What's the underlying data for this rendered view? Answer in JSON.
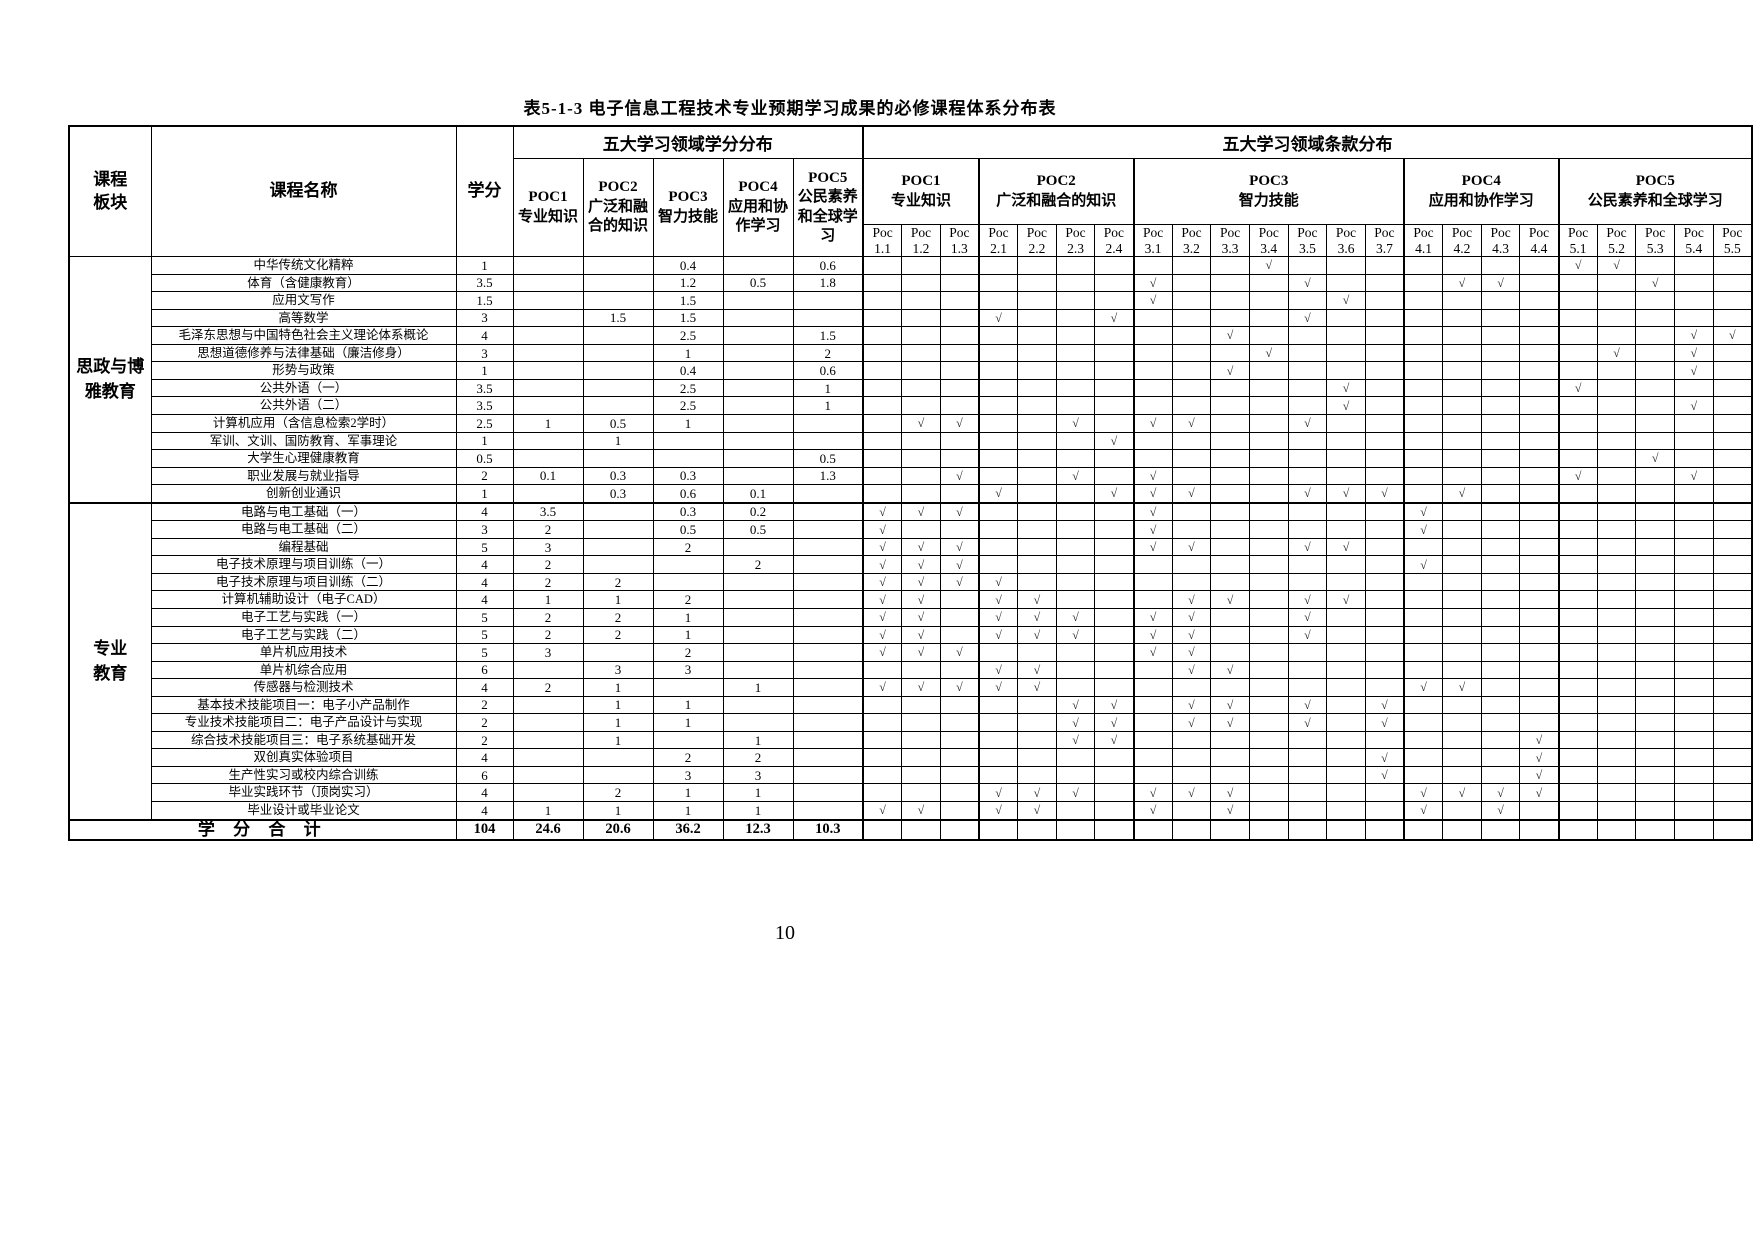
{
  "title": "表5-1-3 电子信息工程技术专业预期学习成果的必修课程体系分布表",
  "page_number": "10",
  "header": {
    "col_module": "课程板块",
    "col_course": "课程名称",
    "col_credits": "学分",
    "credits_group": "五大学习领域学分分布",
    "clauses_group": "五大学习领域条款分布",
    "sub_col_prefix": "Poc",
    "check_mark": "√",
    "credit_cols": [
      {
        "code": "POC1",
        "name": "专业知识"
      },
      {
        "code": "POC2",
        "name": "广泛和融合的知识"
      },
      {
        "code": "POC3",
        "name": "智力技能"
      },
      {
        "code": "POC4",
        "name": "应用和协作学习"
      },
      {
        "code": "POC5",
        "name": "公民素养和全球学习"
      }
    ],
    "clause_groups": [
      {
        "code": "POC1",
        "name": "专业知识",
        "cols": [
          "1.1",
          "1.2",
          "1.3"
        ]
      },
      {
        "code": "POC2",
        "name": "广泛和融合的知识",
        "cols": [
          "2.1",
          "2.2",
          "2.3",
          "2.4"
        ]
      },
      {
        "code": "POC3",
        "name": "智力技能",
        "cols": [
          "3.1",
          "3.2",
          "3.3",
          "3.4",
          "3.5",
          "3.6",
          "3.7"
        ]
      },
      {
        "code": "POC4",
        "name": "应用和协作学习",
        "cols": [
          "4.1",
          "4.2",
          "4.3",
          "4.4"
        ]
      },
      {
        "code": "POC5",
        "name": "公民素养和全球学习",
        "cols": [
          "5.1",
          "5.2",
          "5.3",
          "5.4",
          "5.5"
        ]
      }
    ]
  },
  "groups": [
    {
      "module": "思政与博雅教育",
      "rows": [
        {
          "name": "中华传统文化精粹",
          "credits": "1",
          "poc": [
            "",
            "",
            "0.4",
            "",
            "0.6"
          ],
          "checks": [
            "3.4",
            "5.1",
            "5.2"
          ]
        },
        {
          "name": "体育（含健康教育）",
          "credits": "3.5",
          "poc": [
            "",
            "",
            "1.2",
            "0.5",
            "1.8"
          ],
          "checks": [
            "3.1",
            "3.5",
            "4.2",
            "4.3",
            "5.3"
          ]
        },
        {
          "name": "应用文写作",
          "credits": "1.5",
          "poc": [
            "",
            "",
            "1.5",
            "",
            ""
          ],
          "checks": [
            "3.1",
            "3.6"
          ]
        },
        {
          "name": "高等数学",
          "credits": "3",
          "poc": [
            "",
            "1.5",
            "1.5",
            "",
            ""
          ],
          "checks": [
            "2.1",
            "2.4",
            "3.5"
          ]
        },
        {
          "name": "毛泽东思想与中国特色社会主义理论体系概论",
          "credits": "4",
          "poc": [
            "",
            "",
            "2.5",
            "",
            "1.5"
          ],
          "checks": [
            "3.3",
            "5.4",
            "5.5"
          ]
        },
        {
          "name": "思想道德修养与法律基础（廉洁修身）",
          "credits": "3",
          "poc": [
            "",
            "",
            "1",
            "",
            "2"
          ],
          "checks": [
            "3.4",
            "5.2",
            "5.4"
          ]
        },
        {
          "name": "形势与政策",
          "credits": "1",
          "poc": [
            "",
            "",
            "0.4",
            "",
            "0.6"
          ],
          "checks": [
            "3.3",
            "5.4"
          ]
        },
        {
          "name": "公共外语（一）",
          "credits": "3.5",
          "poc": [
            "",
            "",
            "2.5",
            "",
            "1"
          ],
          "checks": [
            "3.6",
            "5.1"
          ]
        },
        {
          "name": "公共外语（二）",
          "credits": "3.5",
          "poc": [
            "",
            "",
            "2.5",
            "",
            "1"
          ],
          "checks": [
            "3.6",
            "5.4"
          ]
        },
        {
          "name": "计算机应用（含信息检索2学时）",
          "credits": "2.5",
          "poc": [
            "1",
            "0.5",
            "1",
            "",
            ""
          ],
          "checks": [
            "1.2",
            "1.3",
            "2.3",
            "3.1",
            "3.2",
            "3.5"
          ]
        },
        {
          "name": "军训、文训、国防教育、军事理论",
          "credits": "1",
          "poc": [
            "",
            "1",
            "",
            "",
            ""
          ],
          "checks": [
            "2.4"
          ]
        },
        {
          "name": "大学生心理健康教育",
          "credits": "0.5",
          "poc": [
            "",
            "",
            "",
            "",
            "0.5"
          ],
          "checks": [
            "5.3"
          ]
        },
        {
          "name": "职业发展与就业指导",
          "credits": "2",
          "poc": [
            "0.1",
            "0.3",
            "0.3",
            "",
            "1.3"
          ],
          "checks": [
            "1.3",
            "2.3",
            "3.1",
            "5.1",
            "5.4"
          ]
        },
        {
          "name": "创新创业通识",
          "credits": "1",
          "poc": [
            "",
            "0.3",
            "0.6",
            "0.1",
            ""
          ],
          "checks": [
            "2.1",
            "2.4",
            "3.1",
            "3.2",
            "3.5",
            "3.6",
            "3.7",
            "4.2"
          ]
        }
      ]
    },
    {
      "module": "专业教育",
      "rows": [
        {
          "name": "电路与电工基础（一）",
          "credits": "4",
          "poc": [
            "3.5",
            "",
            "0.3",
            "0.2",
            ""
          ],
          "checks": [
            "1.1",
            "1.2",
            "1.3",
            "3.1",
            "4.1"
          ]
        },
        {
          "name": "电路与电工基础（二）",
          "credits": "3",
          "poc": [
            "2",
            "",
            "0.5",
            "0.5",
            ""
          ],
          "checks": [
            "1.1",
            "3.1",
            "4.1"
          ]
        },
        {
          "name": "编程基础",
          "credits": "5",
          "poc": [
            "3",
            "",
            "2",
            "",
            ""
          ],
          "checks": [
            "1.1",
            "1.2",
            "1.3",
            "3.1",
            "3.2",
            "3.5",
            "3.6"
          ]
        },
        {
          "name": "电子技术原理与项目训练（一）",
          "credits": "4",
          "poc": [
            "2",
            "",
            "",
            "2",
            ""
          ],
          "checks": [
            "1.1",
            "1.2",
            "1.3",
            "4.1"
          ]
        },
        {
          "name": "电子技术原理与项目训练（二）",
          "credits": "4",
          "poc": [
            "2",
            "2",
            "",
            "",
            ""
          ],
          "checks": [
            "1.1",
            "1.2",
            "1.3",
            "2.1"
          ]
        },
        {
          "name": "计算机辅助设计（电子CAD）",
          "credits": "4",
          "poc": [
            "1",
            "1",
            "2",
            "",
            ""
          ],
          "checks": [
            "1.1",
            "1.2",
            "2.1",
            "2.2",
            "3.2",
            "3.3",
            "3.5",
            "3.6"
          ]
        },
        {
          "name": "电子工艺与实践（一）",
          "credits": "5",
          "poc": [
            "2",
            "2",
            "1",
            "",
            ""
          ],
          "checks": [
            "1.1",
            "1.2",
            "2.1",
            "2.2",
            "2.3",
            "3.1",
            "3.2",
            "3.5"
          ]
        },
        {
          "name": "电子工艺与实践（二）",
          "credits": "5",
          "poc": [
            "2",
            "2",
            "1",
            "",
            ""
          ],
          "checks": [
            "1.1",
            "1.2",
            "2.1",
            "2.2",
            "2.3",
            "3.1",
            "3.2",
            "3.5"
          ]
        },
        {
          "name": "单片机应用技术",
          "credits": "5",
          "poc": [
            "3",
            "",
            "2",
            "",
            ""
          ],
          "checks": [
            "1.1",
            "1.2",
            "1.3",
            "3.1",
            "3.2"
          ]
        },
        {
          "name": "单片机综合应用",
          "credits": "6",
          "poc": [
            "",
            "3",
            "3",
            "",
            ""
          ],
          "checks": [
            "2.1",
            "2.2",
            "3.2",
            "3.3"
          ]
        },
        {
          "name": "传感器与检测技术",
          "credits": "4",
          "poc": [
            "2",
            "1",
            "",
            "1",
            ""
          ],
          "checks": [
            "1.1",
            "1.2",
            "1.3",
            "2.1",
            "2.2",
            "4.1",
            "4.2"
          ]
        },
        {
          "name": "基本技术技能项目一：电子小产品制作",
          "credits": "2",
          "poc": [
            "",
            "1",
            "1",
            "",
            ""
          ],
          "checks": [
            "2.3",
            "2.4",
            "3.2",
            "3.3",
            "3.5",
            "3.7"
          ]
        },
        {
          "name": "专业技术技能项目二：电子产品设计与实现",
          "credits": "2",
          "poc": [
            "",
            "1",
            "1",
            "",
            ""
          ],
          "checks": [
            "2.3",
            "2.4",
            "3.2",
            "3.3",
            "3.5",
            "3.7"
          ]
        },
        {
          "name": "综合技术技能项目三：电子系统基础开发",
          "credits": "2",
          "poc": [
            "",
            "1",
            "",
            "1",
            ""
          ],
          "checks": [
            "2.3",
            "2.4",
            "4.4"
          ]
        },
        {
          "name": "双创真实体验项目",
          "credits": "4",
          "poc": [
            "",
            "",
            "2",
            "2",
            ""
          ],
          "checks": [
            "3.7",
            "4.4"
          ]
        },
        {
          "name": "生产性实习或校内综合训练",
          "credits": "6",
          "poc": [
            "",
            "",
            "3",
            "3",
            ""
          ],
          "checks": [
            "3.7",
            "4.4"
          ]
        },
        {
          "name": "毕业实践环节（顶岗实习）",
          "credits": "4",
          "poc": [
            "",
            "2",
            "1",
            "1",
            ""
          ],
          "checks": [
            "2.1",
            "2.2",
            "2.3",
            "3.1",
            "3.2",
            "3.3",
            "4.1",
            "4.2",
            "4.3",
            "4.4"
          ]
        },
        {
          "name": "毕业设计或毕业论文",
          "credits": "4",
          "poc": [
            "1",
            "1",
            "1",
            "1",
            ""
          ],
          "checks": [
            "1.1",
            "1.2",
            "2.1",
            "2.2",
            "3.1",
            "3.3",
            "4.1",
            "4.3"
          ]
        }
      ]
    }
  ],
  "total": {
    "label": "学 分 合 计",
    "credits": "104",
    "poc": [
      "24.6",
      "20.6",
      "36.2",
      "12.3",
      "10.3"
    ]
  }
}
